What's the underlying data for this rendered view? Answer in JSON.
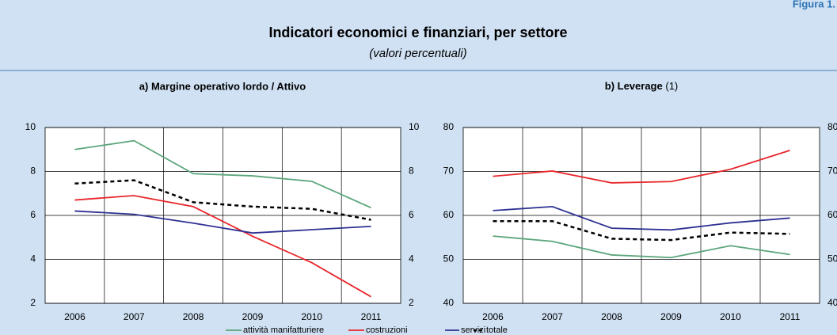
{
  "figure_label": "Figura 1.",
  "title": "Indicatori economici e finanziari, per settore",
  "subtitle": "(valori percentuali)",
  "chart_data": [
    {
      "type": "line",
      "title": "a) Margine operativo lordo / Attivo",
      "categories": [
        "2006",
        "2007",
        "2008",
        "2009",
        "2010",
        "2011"
      ],
      "ylim": [
        2,
        10
      ],
      "yticks": [
        2,
        4,
        6,
        8,
        10
      ],
      "grid": true,
      "series": [
        {
          "name": "attività manifatturiere",
          "color": "#5aa57a",
          "values": [
            9.0,
            9.4,
            7.9,
            7.8,
            7.55,
            6.35
          ]
        },
        {
          "name": "costruzioni",
          "color": "#e8262b",
          "values": [
            6.7,
            6.9,
            6.4,
            5.05,
            3.85,
            2.3
          ]
        },
        {
          "name": "servizi",
          "color": "#2e3192",
          "values": [
            6.2,
            6.05,
            5.65,
            5.2,
            5.35,
            5.5
          ]
        },
        {
          "name": "totale",
          "color": "#000000",
          "dashed": true,
          "values": [
            7.45,
            7.6,
            6.6,
            6.4,
            6.3,
            5.8
          ]
        }
      ]
    },
    {
      "type": "line",
      "title": "b) Leverage",
      "title_note": "(1)",
      "categories": [
        "2006",
        "2007",
        "2008",
        "2009",
        "2010",
        "2011"
      ],
      "ylim": [
        40,
        80
      ],
      "yticks": [
        40,
        50,
        60,
        70,
        80
      ],
      "grid": true,
      "series": [
        {
          "name": "attività manifatturiere",
          "color": "#5aa57a",
          "values": [
            55.3,
            54.1,
            51.0,
            50.4,
            53.1,
            51.1
          ]
        },
        {
          "name": "costruzioni",
          "color": "#e8262b",
          "values": [
            68.9,
            70.1,
            67.4,
            67.7,
            70.5,
            74.8
          ]
        },
        {
          "name": "servizi",
          "color": "#2e3192",
          "values": [
            61.1,
            62.0,
            57.1,
            56.7,
            58.3,
            59.4
          ]
        },
        {
          "name": "totale",
          "color": "#000000",
          "dashed": true,
          "values": [
            58.7,
            58.7,
            54.7,
            54.4,
            56.1,
            55.8
          ]
        }
      ]
    }
  ]
}
